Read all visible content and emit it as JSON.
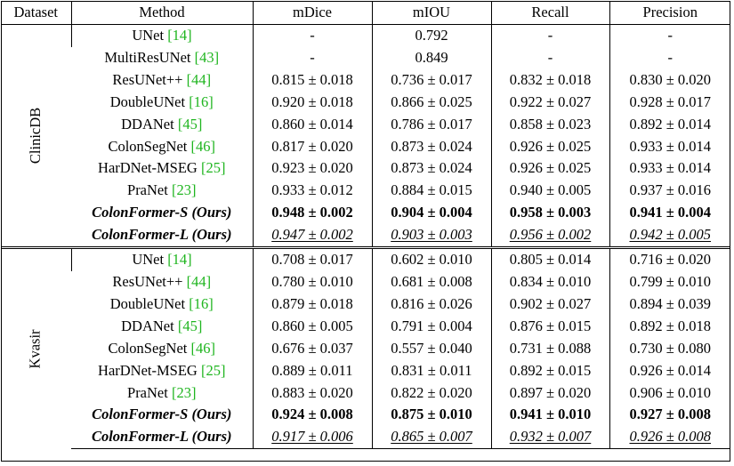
{
  "headers": {
    "dataset": "Dataset",
    "method": "Method",
    "mdice": "mDice",
    "miou": "mIOU",
    "recall": "Recall",
    "precision": "Precision"
  },
  "groups": [
    {
      "dataset": "ClinicDB",
      "rows": [
        {
          "method": "UNet",
          "ref": "[14]",
          "mdice": "-",
          "miou": "0.792",
          "recall": "-",
          "precision": "-"
        },
        {
          "method": "MultiResUNet",
          "ref": "[43]",
          "mdice": "-",
          "miou": "0.849",
          "recall": "-",
          "precision": "-"
        },
        {
          "method": "ResUNet++",
          "ref": "[44]",
          "mdice": "0.815 ± 0.018",
          "miou": "0.736 ± 0.017",
          "recall": "0.832 ± 0.018",
          "precision": "0.830 ± 0.020"
        },
        {
          "method": "DoubleUNet",
          "ref": "[16]",
          "mdice": "0.920 ± 0.018",
          "miou": "0.866 ± 0.025",
          "recall": "0.922 ± 0.027",
          "precision": "0.928 ± 0.017"
        },
        {
          "method": "DDANet",
          "ref": "[45]",
          "mdice": "0.860 ± 0.014",
          "miou": "0.786 ± 0.017",
          "recall": "0.858 ± 0.023",
          "precision": "0.892 ± 0.014"
        },
        {
          "method": "ColonSegNet",
          "ref": "[46]",
          "mdice": "0.817 ± 0.020",
          "miou": "0.873 ± 0.024",
          "recall": "0.926 ± 0.025",
          "precision": "0.933 ± 0.014"
        },
        {
          "method": "HarDNet-MSEG",
          "ref": "[25]",
          "mdice": "0.923 ± 0.020",
          "miou": "0.873 ± 0.024",
          "recall": "0.926 ± 0.025",
          "precision": "0.933 ± 0.014"
        },
        {
          "method": "PraNet",
          "ref": "[23]",
          "mdice": "0.933 ± 0.012",
          "miou": "0.884 ± 0.015",
          "recall": "0.940 ± 0.005",
          "precision": "0.937 ± 0.016"
        },
        {
          "method": "ColonFormer-S (Ours)",
          "ours": true,
          "style": "best",
          "mdice": "0.948 ± 0.002",
          "miou": "0.904 ± 0.004",
          "recall": "0.958 ± 0.003",
          "precision": "0.941 ± 0.004"
        },
        {
          "method": "ColonFormer-L (Ours)",
          "ours": true,
          "style": "second",
          "mdice": "0.947 ± 0.002",
          "miou": "0.903 ± 0.003",
          "recall": "0.956 ± 0.002",
          "precision": "0.942 ± 0.005"
        }
      ]
    },
    {
      "dataset": "Kvasir",
      "rows": [
        {
          "method": "UNet",
          "ref": "[14]",
          "mdice": "0.708 ± 0.017",
          "miou": "0.602 ± 0.010",
          "recall": "0.805 ± 0.014",
          "precision": "0.716 ± 0.020"
        },
        {
          "method": "ResUNet++",
          "ref": "[44]",
          "mdice": "0.780 ± 0.010",
          "miou": "0.681 ± 0.008",
          "recall": "0.834 ± 0.010",
          "precision": "0.799 ± 0.010"
        },
        {
          "method": "DoubleUNet",
          "ref": "[16]",
          "mdice": "0.879 ± 0.018",
          "miou": "0.816 ± 0.026",
          "recall": "0.902 ± 0.027",
          "precision": "0.894 ± 0.039"
        },
        {
          "method": "DDANet",
          "ref": "[45]",
          "mdice": "0.860 ± 0.005",
          "miou": "0.791 ± 0.004",
          "recall": "0.876 ± 0.015",
          "precision": "0.892 ± 0.018"
        },
        {
          "method": "ColonSegNet",
          "ref": "[46]",
          "mdice": "0.676 ± 0.037",
          "miou": "0.557 ± 0.040",
          "recall": "0.731 ± 0.088",
          "precision": "0.730 ± 0.080"
        },
        {
          "method": "HarDNet-MSEG",
          "ref": "[25]",
          "mdice": "0.889 ± 0.011",
          "miou": "0.831 ± 0.011",
          "recall": "0.892 ± 0.015",
          "precision": "0.926 ± 0.014"
        },
        {
          "method": "PraNet",
          "ref": "[23]",
          "mdice": "0.883 ± 0.020",
          "miou": "0.822 ± 0.020",
          "recall": "0.897 ± 0.020",
          "precision": "0.906 ± 0.010"
        },
        {
          "method": "ColonFormer-S (Ours)",
          "ours": true,
          "style": "best",
          "mdice": "0.924 ± 0.008",
          "miou": "0.875 ± 0.010",
          "recall": "0.941 ± 0.010",
          "precision": "0.927 ± 0.008"
        },
        {
          "method": "ColonFormer-L (Ours)",
          "ours": true,
          "style": "second",
          "mdice": "0.917 ± 0.006",
          "miou": "0.865 ± 0.007",
          "recall": "0.932 ± 0.007",
          "precision": "0.926 ± 0.008"
        }
      ]
    }
  ]
}
